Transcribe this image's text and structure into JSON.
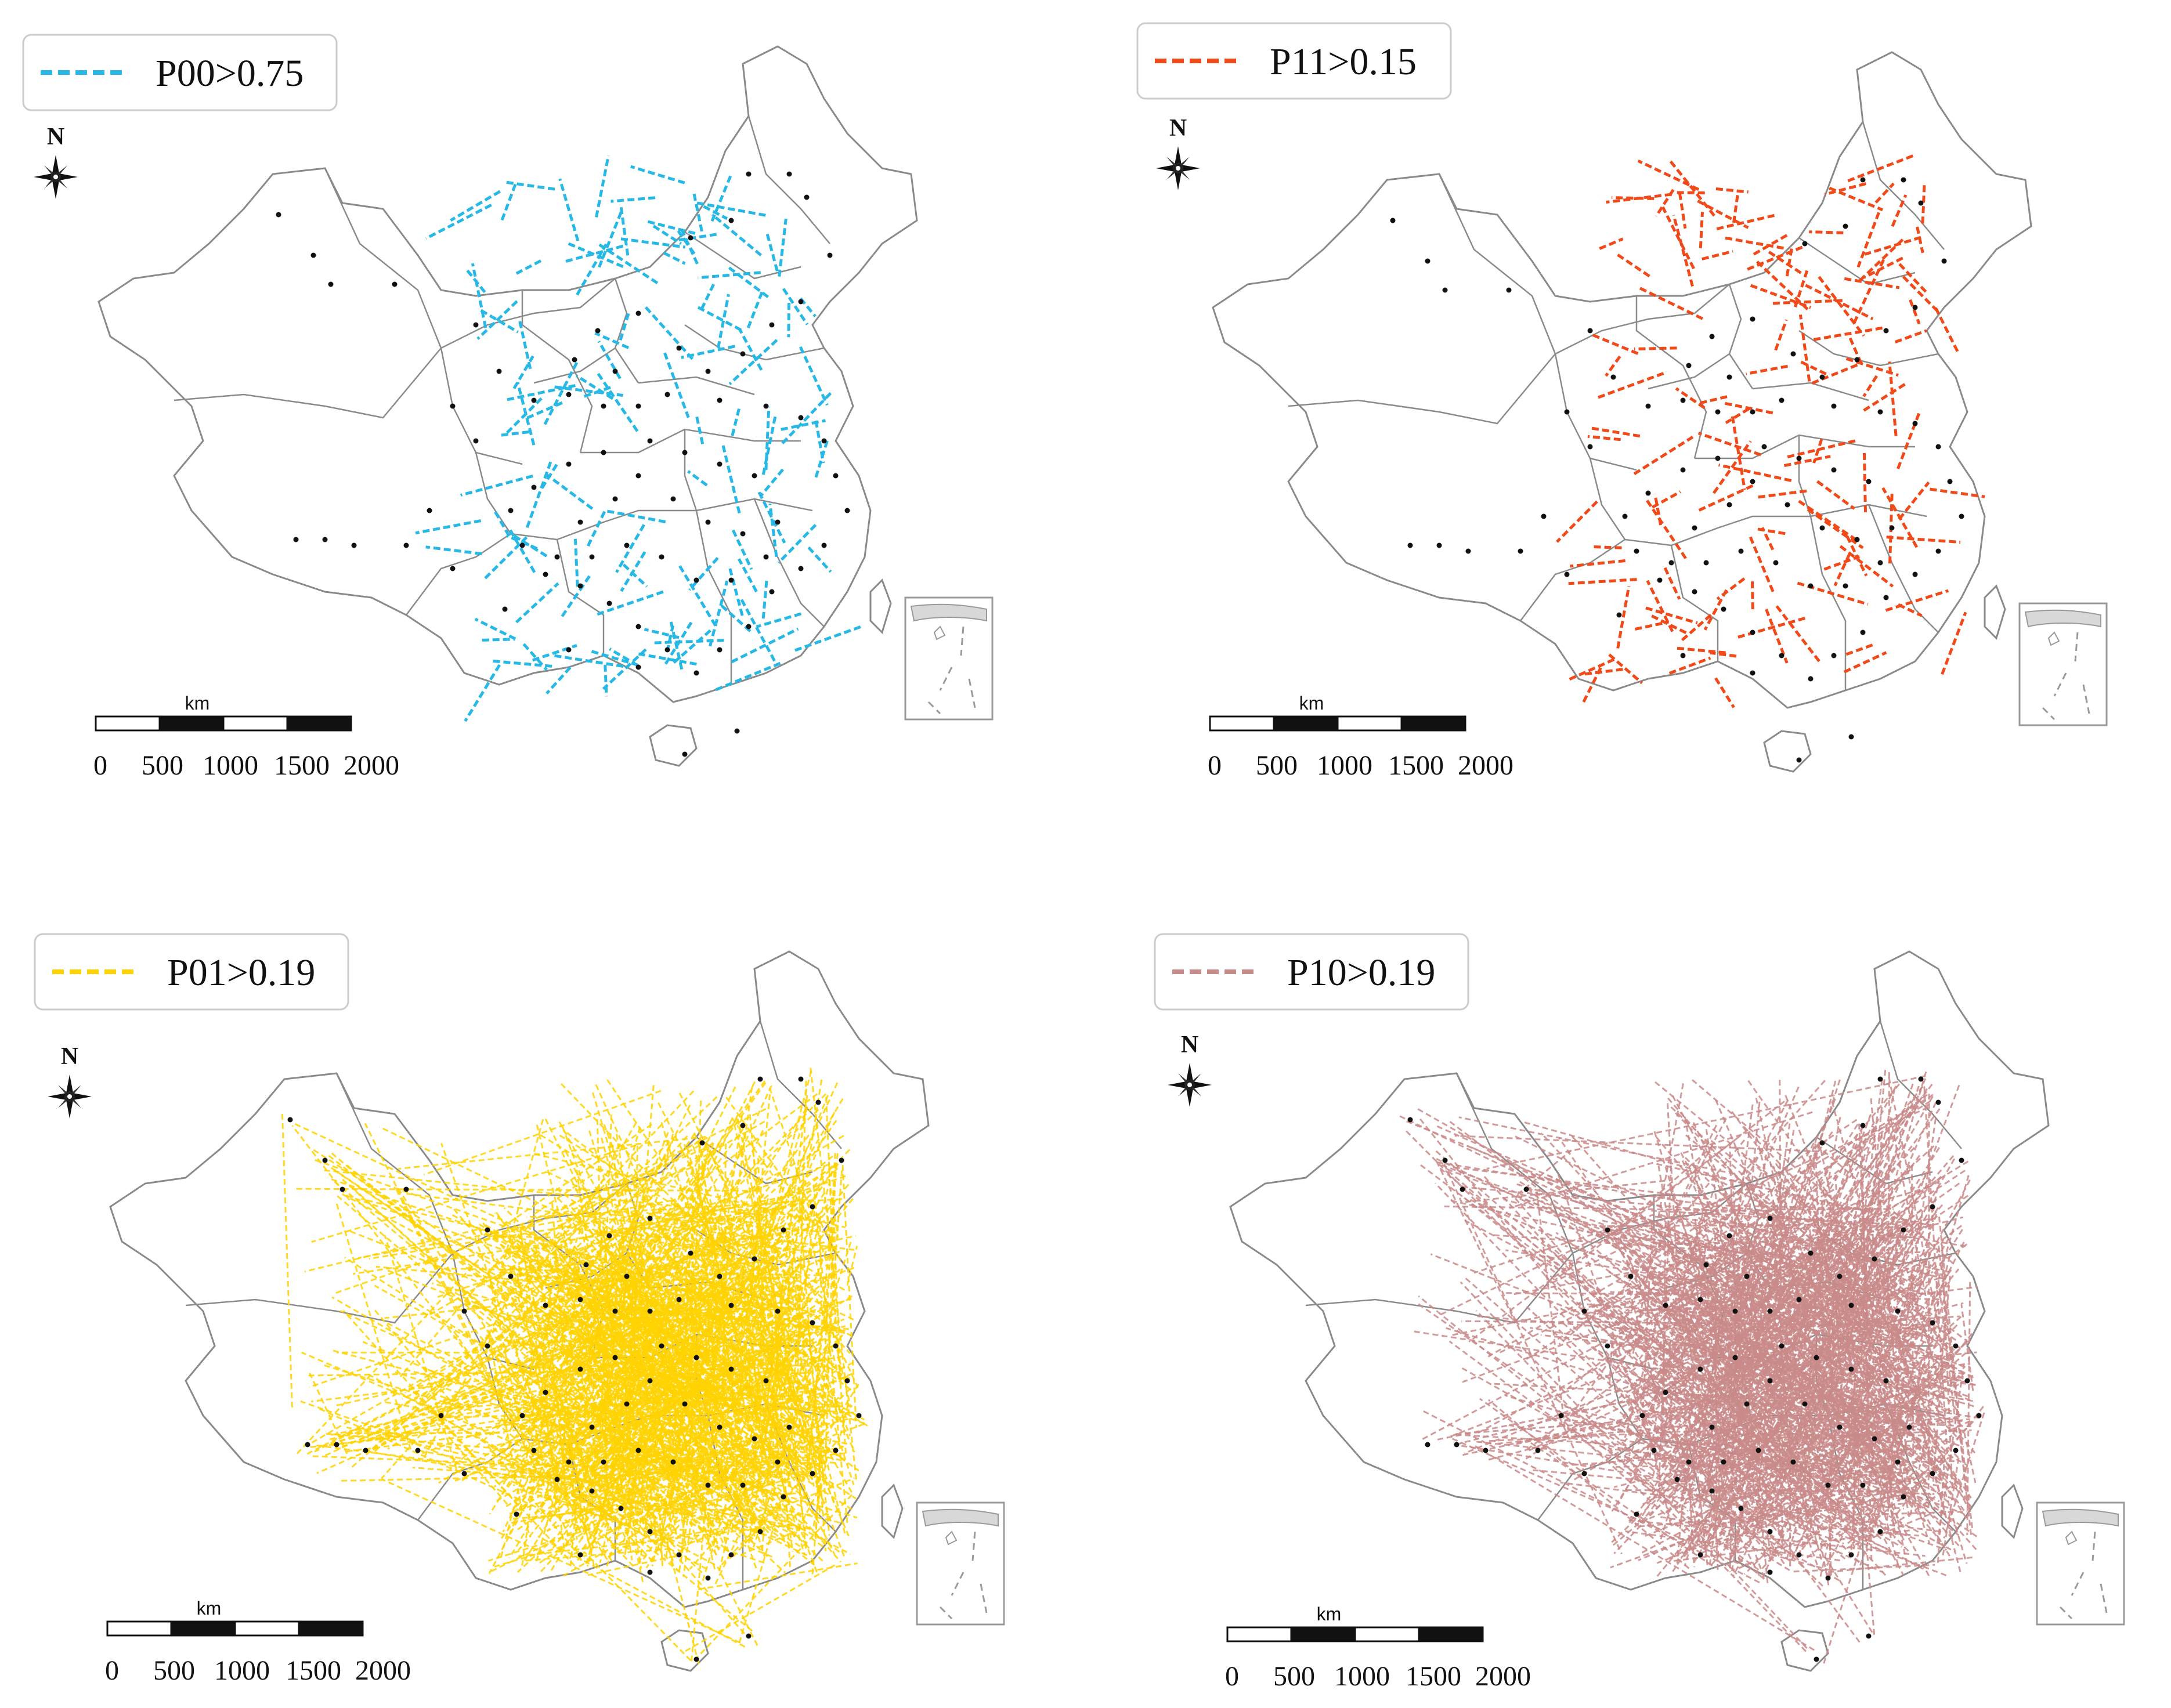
{
  "panels": [
    {
      "id": "p00",
      "legend": {
        "label": "P00>0.75",
        "color": "#27b8e6"
      },
      "flow_density": "sparse-short",
      "north_label": "N",
      "scale": {
        "unit": "km",
        "ticks": [
          "0",
          "500",
          "1000",
          "1500",
          "2000"
        ]
      }
    },
    {
      "id": "p11",
      "legend": {
        "label": "P11>0.15",
        "color": "#f04a1a"
      },
      "flow_density": "sparse-short",
      "north_label": "N",
      "scale": {
        "unit": "km",
        "ticks": [
          "0",
          "500",
          "1000",
          "1500",
          "2000"
        ]
      }
    },
    {
      "id": "p01",
      "legend": {
        "label": "P01>0.19",
        "color": "#ffd200"
      },
      "flow_density": "dense-long",
      "north_label": "N",
      "scale": {
        "unit": "km",
        "ticks": [
          "0",
          "500",
          "1000",
          "1500",
          "2000"
        ]
      }
    },
    {
      "id": "p10",
      "legend": {
        "label": "P10>0.19",
        "color": "#c98a8a"
      },
      "flow_density": "dense-long",
      "north_label": "N",
      "scale": {
        "unit": "km",
        "ticks": [
          "0",
          "500",
          "1000",
          "1500",
          "2000"
        ]
      }
    }
  ],
  "colors": {
    "boundary": "#8a8a8a",
    "city_dot": "#111111"
  },
  "icons": [
    "compass-rose-icon"
  ]
}
